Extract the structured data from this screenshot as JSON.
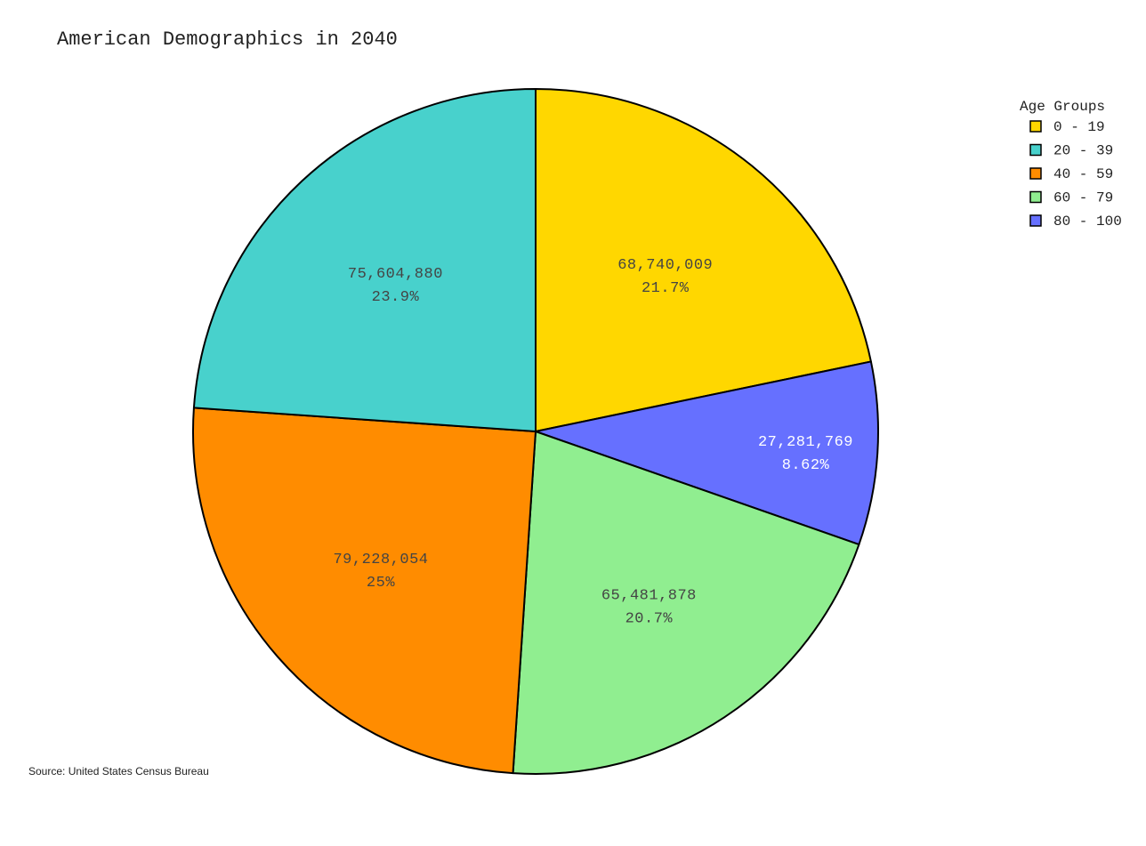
{
  "chart_data": {
    "type": "pie",
    "title": "American Demographics in 2040",
    "legend": {
      "title": "Age Groups",
      "placement": "top-right"
    },
    "slices": [
      {
        "label": "0 - 19",
        "value": 68740009,
        "value_text": "68,740,009",
        "percent_text": "21.7%",
        "color": "#FFD700"
      },
      {
        "label": "80 - 100",
        "value": 27281769,
        "value_text": "27,281,769",
        "percent_text": "8.62%",
        "color": "#6670FF"
      },
      {
        "label": "60 - 79",
        "value": 65481878,
        "value_text": "65,481,878",
        "percent_text": "20.7%",
        "color": "#90EE90"
      },
      {
        "label": "40 - 59",
        "value": 79228054,
        "value_text": "79,228,054",
        "percent_text": "25%",
        "color": "#FF8C00"
      },
      {
        "label": "20 - 39",
        "value": 75604880,
        "value_text": "75,604,880",
        "percent_text": "23.9%",
        "color": "#48D1CC"
      }
    ],
    "legend_order": [
      "0 - 19",
      "20 - 39",
      "40 - 59",
      "60 - 79",
      "80 - 100"
    ],
    "source": "Source: United States Census Bureau"
  }
}
